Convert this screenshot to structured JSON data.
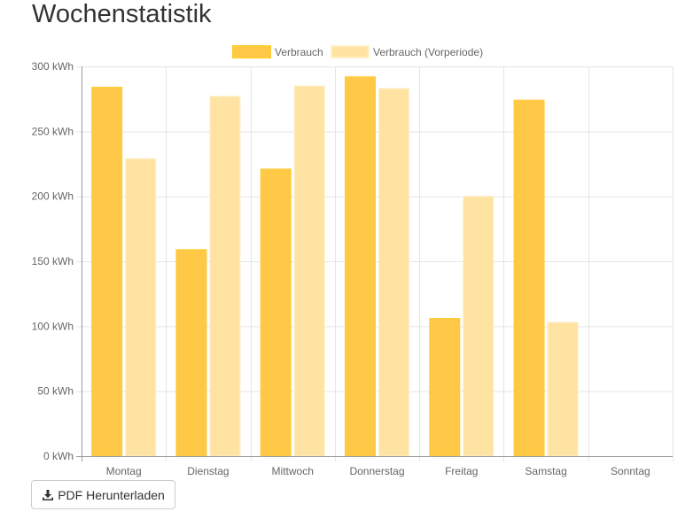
{
  "page": {
    "title": "Wochenstatistik"
  },
  "actions": {
    "download_label": "PDF Herunterladen",
    "download_icon": "download-icon"
  },
  "colors": {
    "current": "#ffc947",
    "current_border": "#ffcc33",
    "previous": "#ffe3a3",
    "previous_border": "#fff0c8",
    "grid": "#e5e5e5",
    "axis": "#999999",
    "text": "#666666"
  },
  "chart_data": {
    "type": "bar",
    "title": "",
    "xlabel": "",
    "ylabel": "",
    "unit": "kWh",
    "ylim": [
      0,
      300
    ],
    "yticks": [
      0,
      50,
      100,
      150,
      200,
      250,
      300
    ],
    "ytick_labels": [
      "0 kWh",
      "50 kWh",
      "100 kWh",
      "150 kWh",
      "200 kWh",
      "250 kWh",
      "300 kWh"
    ],
    "grid": true,
    "legend_position": "top-center",
    "categories": [
      "Montag",
      "Dienstag",
      "Mittwoch",
      "Donnerstag",
      "Freitag",
      "Samstag",
      "Sonntag"
    ],
    "series": [
      {
        "name": "Verbrauch",
        "color": "#ffc947",
        "values": [
          284,
          159,
          221,
          292,
          106,
          274,
          null
        ]
      },
      {
        "name": "Verbrauch (Vorperiode)",
        "color": "#ffe3a3",
        "values": [
          229,
          277,
          285,
          283,
          200,
          103,
          null
        ]
      }
    ]
  }
}
